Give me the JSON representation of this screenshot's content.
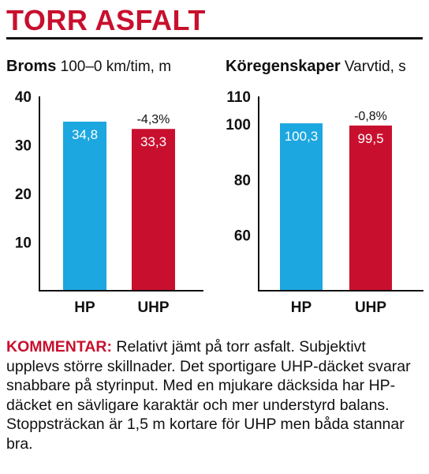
{
  "header": {
    "title": "TORR ASFALT"
  },
  "chart_data": [
    {
      "type": "bar",
      "title": "Broms",
      "subtitle": "100–0 km/tim, m",
      "categories": [
        "HP",
        "UHP"
      ],
      "values": [
        34.8,
        33.3
      ],
      "value_labels": [
        "34,8",
        "33,3"
      ],
      "annotation": "-4,3%",
      "ylim": [
        0,
        40
      ],
      "yticks": [
        10,
        20,
        30,
        40
      ],
      "colors": [
        "#1ca7e0",
        "#c8102e"
      ],
      "grid": false,
      "legend": "none"
    },
    {
      "type": "bar",
      "title": "Köregenskaper",
      "subtitle": "Varvtid, s",
      "categories": [
        "HP",
        "UHP"
      ],
      "values": [
        100.3,
        99.5
      ],
      "value_labels": [
        "100,3",
        "99,5"
      ],
      "annotation": "-0,8%",
      "ylim": [
        40,
        110
      ],
      "yticks": [
        60,
        80,
        100,
        110
      ],
      "colors": [
        "#1ca7e0",
        "#c8102e"
      ],
      "grid": false,
      "legend": "none"
    }
  ],
  "comment": {
    "label": "KOMMENTAR:",
    "text": "Relativt jämt på torr asfalt. Subjektivt upplevs större skillnader. Det sportigare UHP-däcket svarar snabbare på styrinput. Med en mjukare däcksida har HP-däcket en sävligare karaktär och mer understyrd balans. Stoppsträckan är 1,5 m kortare för UHP men båda stannar bra."
  }
}
